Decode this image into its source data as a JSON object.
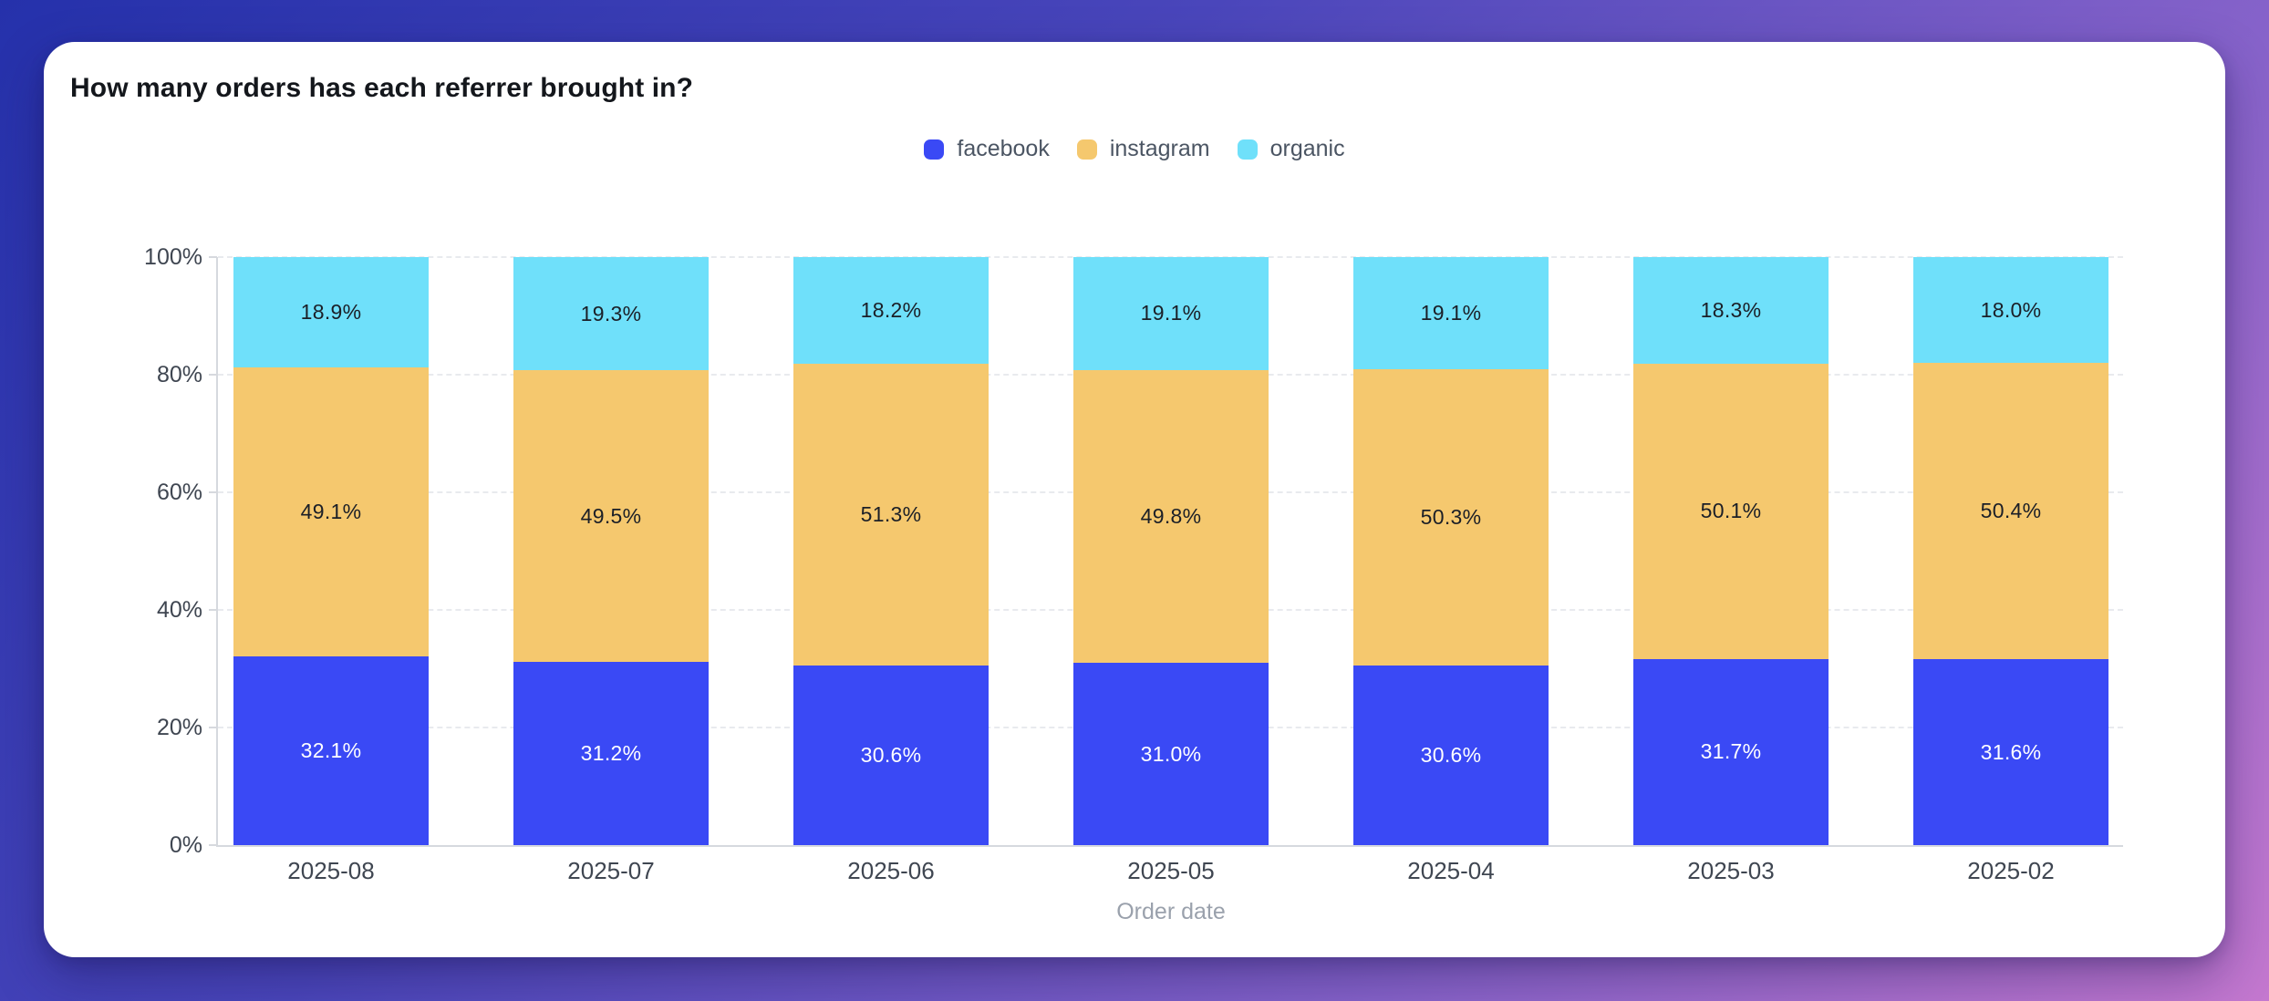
{
  "chart_data": {
    "type": "bar",
    "stacked": true,
    "stack_unit": "percent",
    "title": "How many orders has each referrer brought in?",
    "xlabel": "Order date",
    "ylabel": "",
    "categories": [
      "2025-08",
      "2025-07",
      "2025-06",
      "2025-05",
      "2025-04",
      "2025-03",
      "2025-02"
    ],
    "series": [
      {
        "name": "facebook",
        "color": "#3a49f5",
        "label_color": "#ffffff",
        "values": [
          32.1,
          31.2,
          30.6,
          31.0,
          30.6,
          31.7,
          31.6
        ],
        "labels": [
          "32.1%",
          "31.2%",
          "30.6%",
          "31.0%",
          "30.6%",
          "31.7%",
          "31.6%"
        ]
      },
      {
        "name": "instagram",
        "color": "#f5c86e",
        "label_color": "#1b1f27",
        "values": [
          49.1,
          49.5,
          51.3,
          49.8,
          50.3,
          50.1,
          50.4
        ],
        "labels": [
          "49.1%",
          "49.5%",
          "51.3%",
          "49.8%",
          "50.3%",
          "50.1%",
          "50.4%"
        ]
      },
      {
        "name": "organic",
        "color": "#6fe0fa",
        "label_color": "#1b1f27",
        "values": [
          18.9,
          19.3,
          18.2,
          19.1,
          19.1,
          18.3,
          18.0
        ],
        "labels": [
          "18.9%",
          "19.3%",
          "18.2%",
          "19.1%",
          "19.1%",
          "18.3%",
          "18.0%"
        ]
      }
    ],
    "y_ticks": [
      {
        "value": 0,
        "label": "0%"
      },
      {
        "value": 20,
        "label": "20%"
      },
      {
        "value": 40,
        "label": "40%"
      },
      {
        "value": 60,
        "label": "60%"
      },
      {
        "value": 80,
        "label": "80%"
      },
      {
        "value": 100,
        "label": "100%"
      }
    ],
    "ylim": [
      0,
      100
    ],
    "grid": "horizontal-dashed",
    "legend_position": "top-center"
  },
  "legend": {
    "items": [
      {
        "label": "facebook",
        "color": "#3a49f5"
      },
      {
        "label": "instagram",
        "color": "#f5c86e"
      },
      {
        "label": "organic",
        "color": "#6fe0fa"
      }
    ]
  },
  "colors": {
    "background_gradient": [
      "#2531ab",
      "#8763ca",
      "#c478cf"
    ],
    "card": "#ffffff",
    "gridline": "#e8eaee",
    "axis_line": "#d6d9de",
    "tick_text": "#3f4651",
    "axis_title_text": "#9aa1ac",
    "title_text": "#14171c",
    "legend_text": "#4b5563"
  }
}
